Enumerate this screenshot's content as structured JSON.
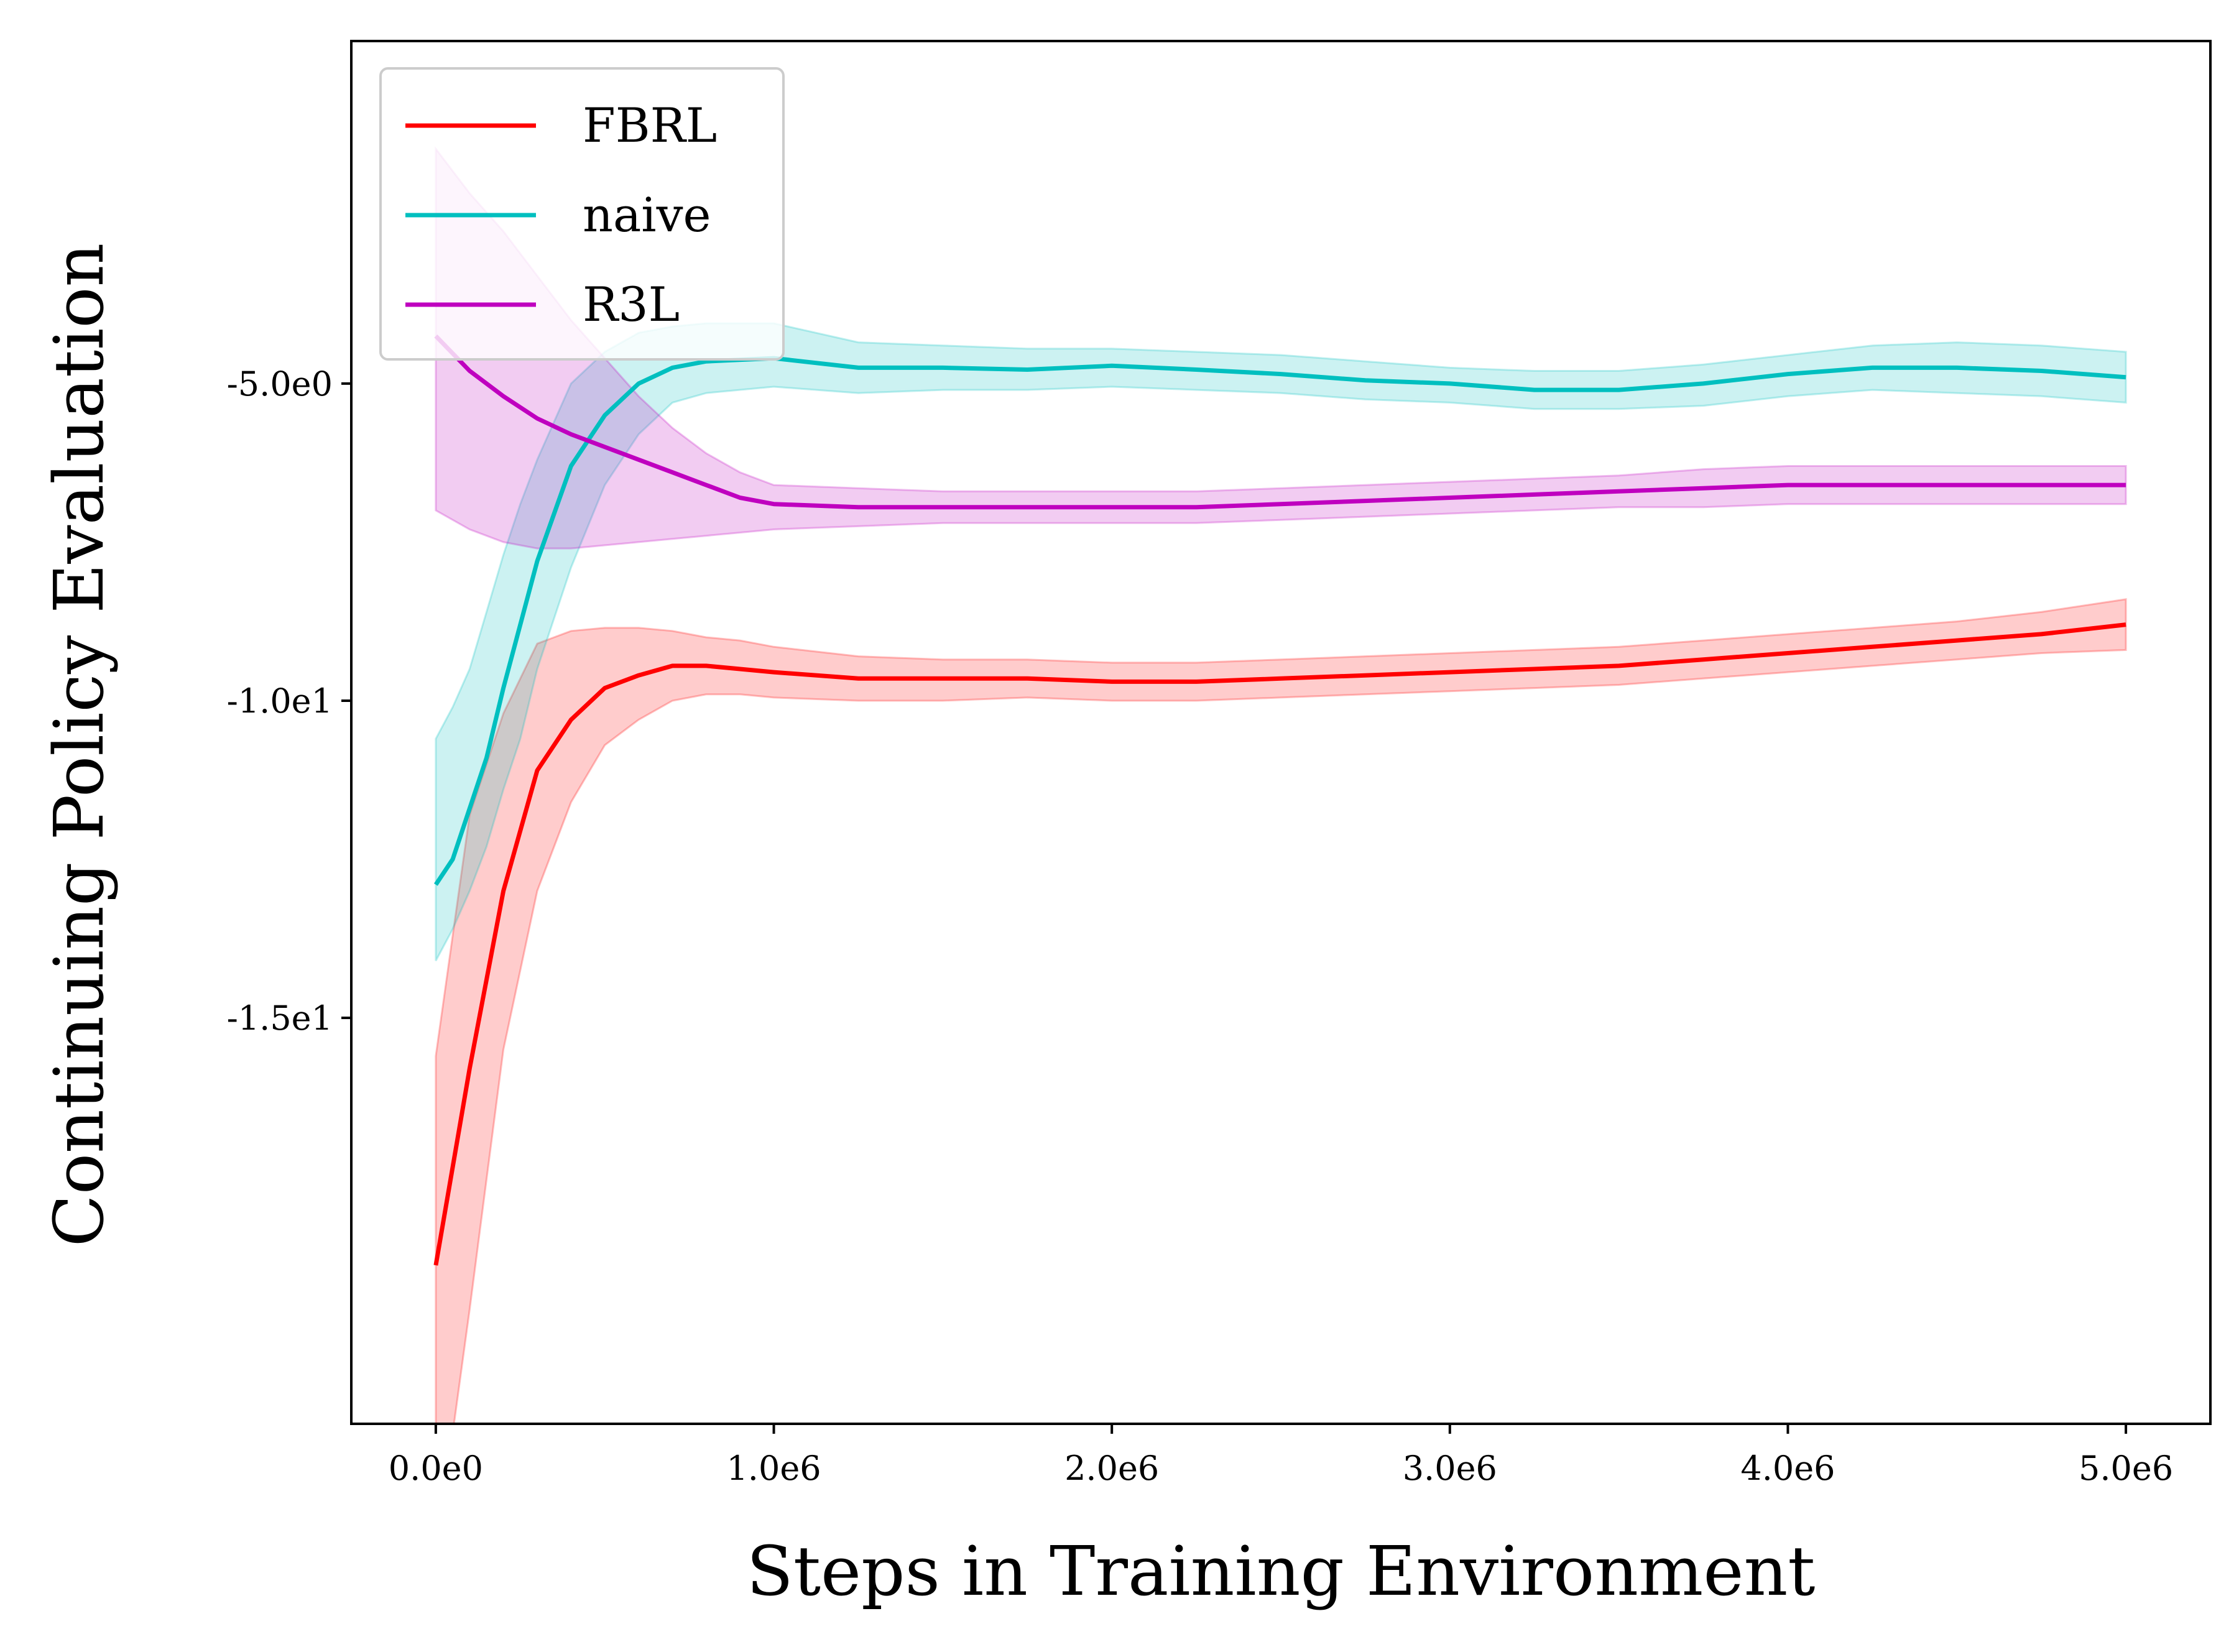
{
  "chart_data": {
    "type": "line",
    "title": "",
    "xlabel": "Steps in Training Environment",
    "ylabel": "Continuing Policy Evaluation",
    "xlim": [
      -250000,
      5250000
    ],
    "ylim": [
      -21.4,
      0.4
    ],
    "x_ticks": [
      {
        "value": 0,
        "label": "0.0e0"
      },
      {
        "value": 1000000,
        "label": "1.0e6"
      },
      {
        "value": 2000000,
        "label": "2.0e6"
      },
      {
        "value": 3000000,
        "label": "3.0e6"
      },
      {
        "value": 4000000,
        "label": "4.0e6"
      },
      {
        "value": 5000000,
        "label": "5.0e6"
      }
    ],
    "y_ticks": [
      {
        "value": -5,
        "label": "-5.0e0"
      },
      {
        "value": -10,
        "label": "-1.0e1"
      },
      {
        "value": -15,
        "label": "-1.5e1"
      }
    ],
    "grid": false,
    "legend": "top-left",
    "series": [
      {
        "name": "FBRL",
        "color": "#ff0000",
        "x": [
          0,
          100000,
          200000,
          300000,
          400000,
          500000,
          600000,
          700000,
          800000,
          900000,
          1000000,
          1250000,
          1500000,
          1750000,
          2000000,
          2250000,
          2500000,
          2750000,
          3000000,
          3250000,
          3500000,
          3750000,
          4000000,
          4250000,
          4500000,
          4750000,
          5000000
        ],
        "y": [
          -18.9,
          -15.8,
          -13.0,
          -11.1,
          -10.3,
          -9.8,
          -9.6,
          -9.45,
          -9.45,
          -9.5,
          -9.55,
          -9.65,
          -9.65,
          -9.65,
          -9.7,
          -9.7,
          -9.65,
          -9.6,
          -9.55,
          -9.5,
          -9.45,
          -9.35,
          -9.25,
          -9.15,
          -9.05,
          -8.95,
          -8.8
        ],
        "upper": [
          -15.6,
          -11.8,
          -10.2,
          -9.1,
          -8.9,
          -8.85,
          -8.85,
          -8.9,
          -9.0,
          -9.05,
          -9.15,
          -9.3,
          -9.35,
          -9.35,
          -9.4,
          -9.4,
          -9.35,
          -9.3,
          -9.25,
          -9.2,
          -9.15,
          -9.05,
          -8.95,
          -8.85,
          -8.75,
          -8.6,
          -8.4
        ],
        "lower": [
          -23.5,
          -19.6,
          -15.5,
          -13.0,
          -11.6,
          -10.7,
          -10.3,
          -10.0,
          -9.9,
          -9.9,
          -9.95,
          -10.0,
          -10.0,
          -9.95,
          -10.0,
          -10.0,
          -9.95,
          -9.9,
          -9.85,
          -9.8,
          -9.75,
          -9.65,
          -9.55,
          -9.45,
          -9.35,
          -9.25,
          -9.2
        ]
      },
      {
        "name": "naive",
        "color": "#00bfbf",
        "x": [
          0,
          50000,
          100000,
          150000,
          200000,
          250000,
          300000,
          400000,
          500000,
          600000,
          700000,
          800000,
          1000000,
          1250000,
          1500000,
          1750000,
          2000000,
          2250000,
          2500000,
          2750000,
          3000000,
          3250000,
          3500000,
          3750000,
          4000000,
          4250000,
          4500000,
          4750000,
          5000000
        ],
        "y": [
          -12.9,
          -12.5,
          -11.7,
          -10.9,
          -9.8,
          -8.8,
          -7.8,
          -6.3,
          -5.5,
          -5.0,
          -4.75,
          -4.65,
          -4.6,
          -4.75,
          -4.75,
          -4.78,
          -4.72,
          -4.78,
          -4.85,
          -4.95,
          -5.0,
          -5.1,
          -5.1,
          -5.0,
          -4.85,
          -4.75,
          -4.75,
          -4.8,
          -4.9
        ],
        "upper": [
          -10.6,
          -10.1,
          -9.5,
          -8.6,
          -7.7,
          -6.9,
          -6.2,
          -5.0,
          -4.5,
          -4.2,
          -4.1,
          -4.05,
          -4.05,
          -4.35,
          -4.4,
          -4.45,
          -4.45,
          -4.5,
          -4.55,
          -4.65,
          -4.75,
          -4.8,
          -4.8,
          -4.7,
          -4.55,
          -4.4,
          -4.35,
          -4.4,
          -4.5
        ],
        "lower": [
          -14.1,
          -13.6,
          -13.0,
          -12.3,
          -11.4,
          -10.6,
          -9.5,
          -7.9,
          -6.6,
          -5.8,
          -5.3,
          -5.15,
          -5.05,
          -5.15,
          -5.1,
          -5.1,
          -5.05,
          -5.1,
          -5.15,
          -5.25,
          -5.3,
          -5.4,
          -5.4,
          -5.35,
          -5.2,
          -5.1,
          -5.15,
          -5.2,
          -5.3
        ]
      },
      {
        "name": "R3L",
        "color": "#bf00bf",
        "x": [
          0,
          100000,
          200000,
          300000,
          400000,
          500000,
          600000,
          700000,
          800000,
          900000,
          1000000,
          1250000,
          1500000,
          1750000,
          2000000,
          2250000,
          2500000,
          2750000,
          3000000,
          3250000,
          3500000,
          3750000,
          4000000,
          4250000,
          4500000,
          4750000,
          5000000
        ],
        "y": [
          -4.25,
          -4.8,
          -5.2,
          -5.55,
          -5.8,
          -6.0,
          -6.2,
          -6.4,
          -6.6,
          -6.8,
          -6.9,
          -6.95,
          -6.95,
          -6.95,
          -6.95,
          -6.95,
          -6.9,
          -6.85,
          -6.8,
          -6.75,
          -6.7,
          -6.65,
          -6.6,
          -6.6,
          -6.6,
          -6.6,
          -6.6
        ],
        "upper": [
          -1.3,
          -2.0,
          -2.6,
          -3.3,
          -4.0,
          -4.6,
          -5.2,
          -5.7,
          -6.1,
          -6.4,
          -6.6,
          -6.65,
          -6.7,
          -6.7,
          -6.7,
          -6.7,
          -6.65,
          -6.6,
          -6.55,
          -6.5,
          -6.45,
          -6.35,
          -6.3,
          -6.3,
          -6.3,
          -6.3,
          -6.3
        ],
        "lower": [
          -7.0,
          -7.3,
          -7.5,
          -7.6,
          -7.6,
          -7.55,
          -7.5,
          -7.45,
          -7.4,
          -7.35,
          -7.3,
          -7.25,
          -7.2,
          -7.2,
          -7.2,
          -7.2,
          -7.15,
          -7.1,
          -7.05,
          -7.0,
          -6.95,
          -6.95,
          -6.9,
          -6.9,
          -6.9,
          -6.9,
          -6.9
        ]
      }
    ]
  }
}
